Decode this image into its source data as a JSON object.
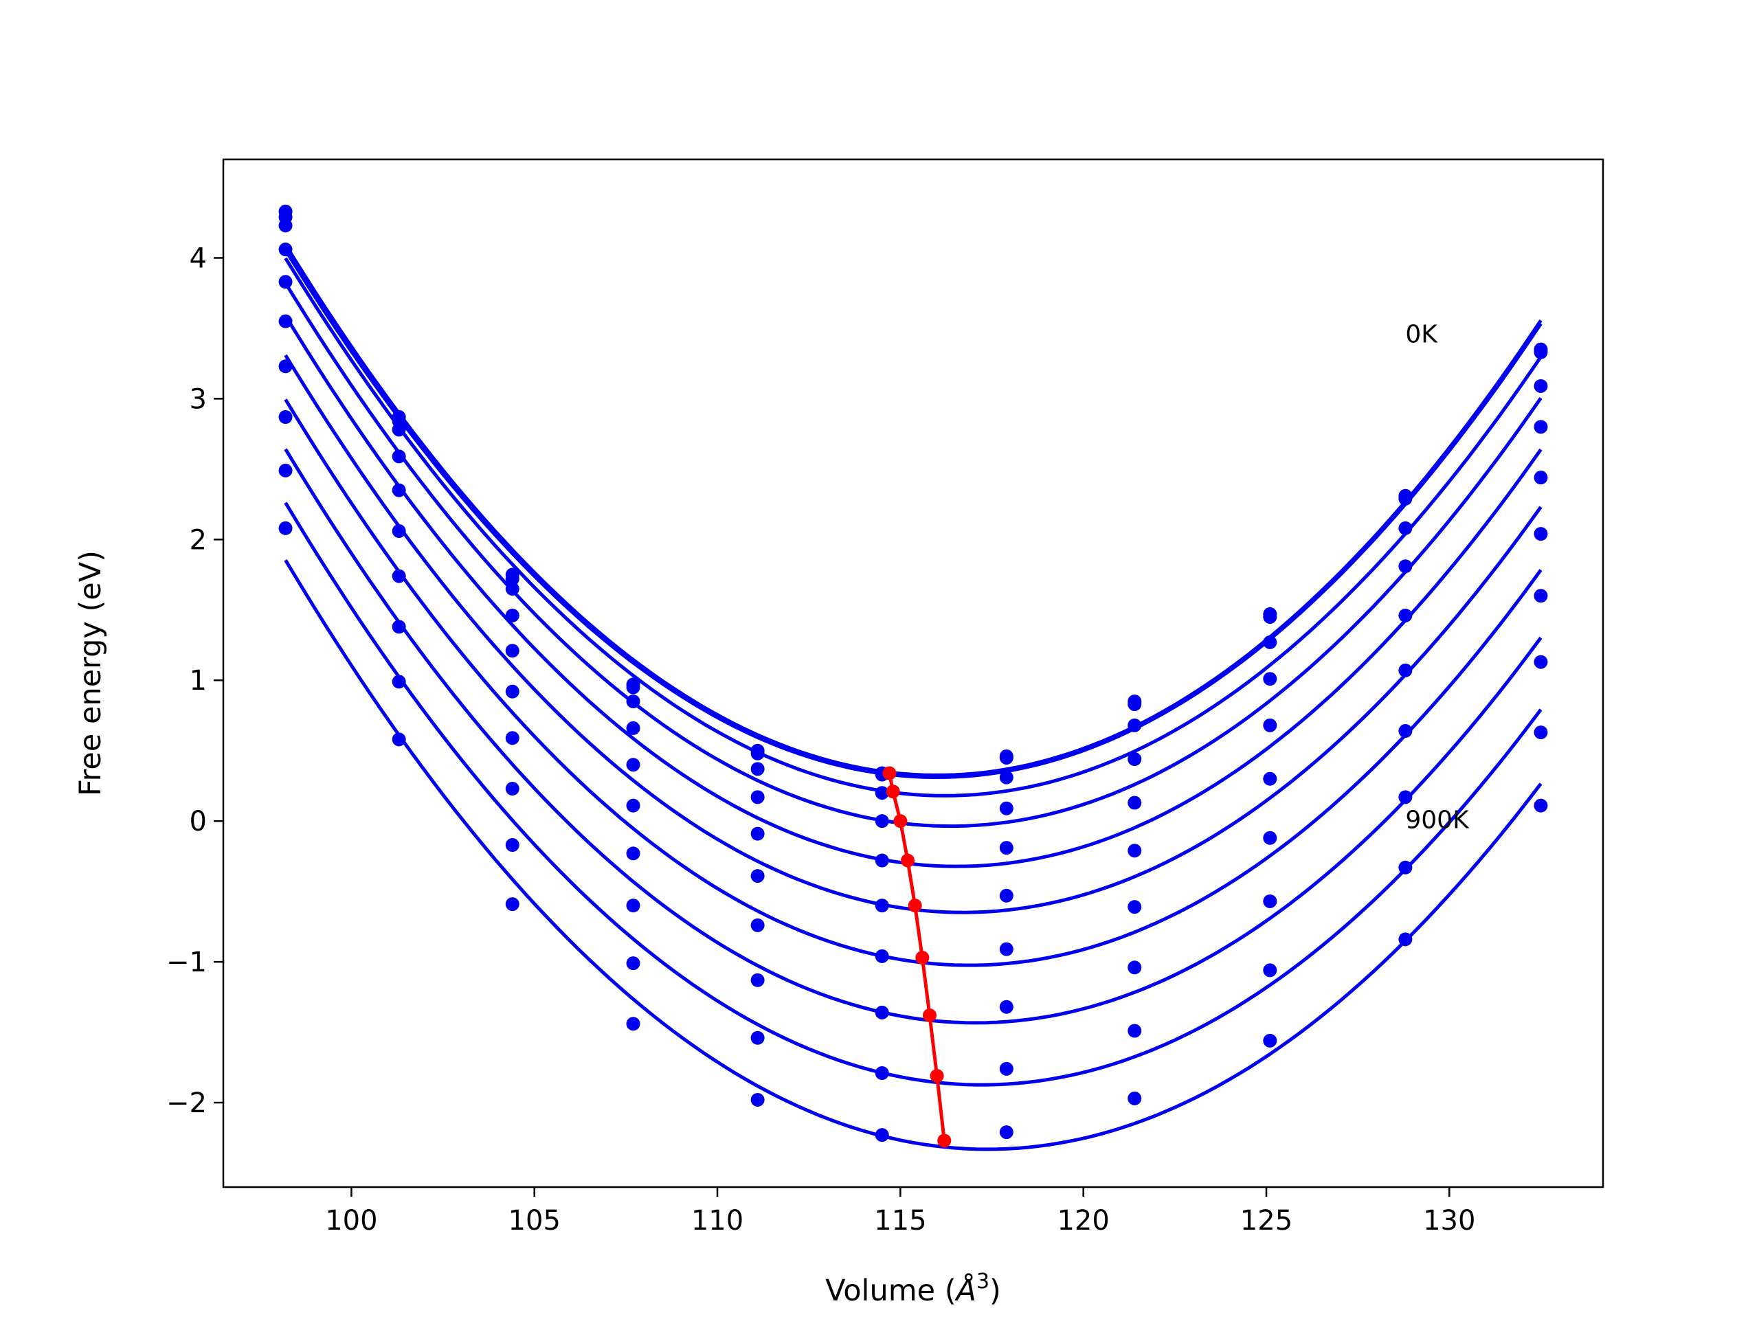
{
  "chart_data": {
    "type": "line",
    "title": "",
    "xlabel": "Volume (",
    "xlabel_symbol": "Å",
    "xlabel_exponent": "3",
    "xlabel_close": ")",
    "ylabel": "Free energy (eV)",
    "xlim": [
      96.5,
      134.2
    ],
    "ylim": [
      -2.6,
      4.7
    ],
    "xticks": [
      100,
      105,
      110,
      115,
      120,
      125,
      130
    ],
    "yticks": [
      -2,
      -1,
      0,
      1,
      2,
      3,
      4
    ],
    "ytick_labels": [
      "−2",
      "−1",
      "0",
      "1",
      "2",
      "3",
      "4"
    ],
    "grid": false,
    "legend": "none",
    "colors": {
      "curves": "#0000ee",
      "minimum": "#ff0000",
      "frame": "#000000"
    },
    "annotations": [
      {
        "text": "0K",
        "x": 128.8,
        "y": 3.4
      },
      {
        "text": "900K",
        "x": 128.8,
        "y": -0.05
      }
    ],
    "x": [
      98.2,
      101.3,
      104.4,
      107.7,
      111.1,
      114.5,
      117.9,
      121.4,
      125.1,
      128.8,
      132.5
    ],
    "series": [
      {
        "values": [
          4.33,
          2.87,
          1.75,
          0.97,
          0.5,
          0.34,
          0.46,
          0.85,
          1.47,
          2.31,
          3.35
        ]
      },
      {
        "values": [
          4.29,
          2.84,
          1.72,
          0.95,
          0.48,
          0.33,
          0.45,
          0.83,
          1.45,
          2.29,
          3.33
        ]
      },
      {
        "values": [
          4.23,
          2.78,
          1.65,
          0.85,
          0.37,
          0.2,
          0.31,
          0.68,
          1.27,
          2.08,
          3.09
        ]
      },
      {
        "values": [
          4.06,
          2.59,
          1.46,
          0.66,
          0.17,
          0.0,
          0.09,
          0.44,
          1.01,
          1.81,
          2.8
        ]
      },
      {
        "values": [
          3.83,
          2.35,
          1.21,
          0.4,
          -0.09,
          -0.28,
          -0.19,
          0.13,
          0.68,
          1.46,
          2.44
        ]
      },
      {
        "values": [
          3.55,
          2.06,
          0.92,
          0.11,
          -0.39,
          -0.6,
          -0.53,
          -0.21,
          0.3,
          1.07,
          2.04
        ]
      },
      {
        "values": [
          3.23,
          1.74,
          0.59,
          -0.23,
          -0.74,
          -0.96,
          -0.91,
          -0.61,
          -0.12,
          0.64,
          1.6
        ]
      },
      {
        "values": [
          2.87,
          1.38,
          0.23,
          -0.6,
          -1.13,
          -1.36,
          -1.32,
          -1.04,
          -0.57,
          0.17,
          1.13
        ]
      },
      {
        "values": [
          2.49,
          0.99,
          -0.17,
          -1.01,
          -1.54,
          -1.79,
          -1.76,
          -1.49,
          -1.06,
          -0.33,
          0.63
        ]
      },
      {
        "values": [
          2.08,
          0.58,
          -0.59,
          -1.44,
          -1.98,
          -2.23,
          -2.21,
          -1.97,
          -1.56,
          -0.84,
          0.11
        ]
      }
    ],
    "minimum_path": {
      "x": [
        114.7,
        114.8,
        115.0,
        115.2,
        115.4,
        115.6,
        115.8,
        116.0,
        116.2
      ],
      "y": [
        0.34,
        0.21,
        0.0,
        -0.28,
        -0.6,
        -0.97,
        -1.38,
        -1.81,
        -2.27
      ]
    }
  }
}
